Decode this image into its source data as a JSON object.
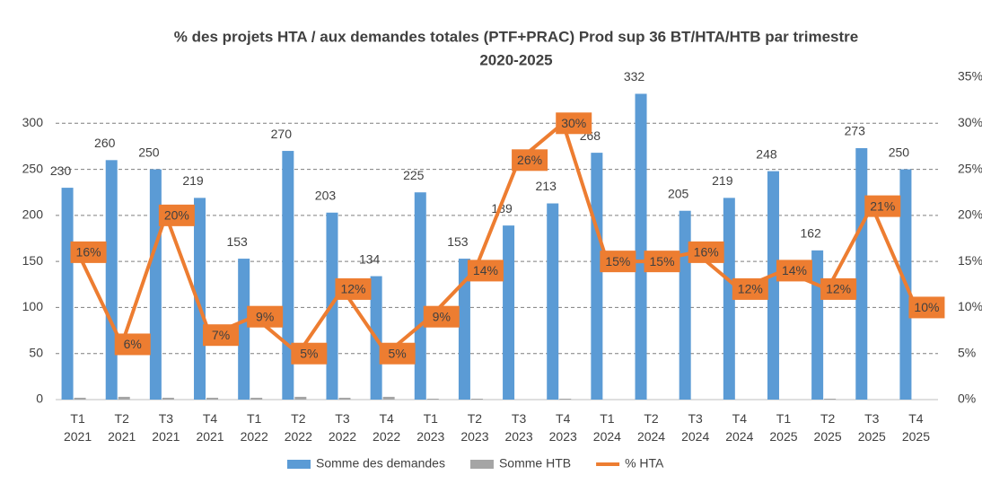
{
  "chart_data": {
    "type": "bar_line",
    "title": [
      "% des projets HTA / aux demandes totales (PTF+PRAC) Prod sup 36 BT/HTA/HTB par trimestre",
      "2020-2025"
    ],
    "categories": [
      "T1 2021",
      "T2 2021",
      "T3 2021",
      "T4 2021",
      "T1 2022",
      "T2 2022",
      "T3 2022",
      "T4 2022",
      "T1 2023",
      "T2 2023",
      "T3 2023",
      "T4 2023",
      "T1 2024",
      "T2 2024",
      "T3 2024",
      "T4 2024",
      "T1 2025",
      "T2 2025",
      "T3 2025",
      "T4 2025"
    ],
    "series": [
      {
        "name": "Somme des demandes",
        "type": "bar",
        "color": "#5b9bd5",
        "values": [
          230,
          260,
          250,
          219,
          153,
          270,
          203,
          134,
          225,
          153,
          189,
          213,
          268,
          332,
          205,
          219,
          248,
          162,
          273,
          250
        ]
      },
      {
        "name": "Somme HTB",
        "type": "bar",
        "color": "#a5a5a5",
        "values": [
          2,
          3,
          2,
          2,
          2,
          3,
          2,
          3,
          1,
          1,
          0,
          1,
          0,
          0,
          0,
          0,
          0,
          1,
          0,
          0
        ]
      },
      {
        "name": "% HTA",
        "type": "line",
        "axis": "y2",
        "color": "#ed7d31",
        "values": [
          16,
          6,
          20,
          7,
          9,
          5,
          12,
          5,
          9,
          14,
          26,
          30,
          15,
          15,
          16,
          12,
          14,
          12,
          21,
          10
        ],
        "value_labels": [
          "16%",
          "6%",
          "20%",
          "7%",
          "9%",
          "5%",
          "12%",
          "5%",
          "9%",
          "14%",
          "26%",
          "30%",
          "15%",
          "15%",
          "16%",
          "12%",
          "14%",
          "12%",
          "21%",
          "10%"
        ]
      }
    ],
    "ylim": [
      0,
      350
    ],
    "yticks": [
      0,
      50,
      100,
      150,
      200,
      250,
      300
    ],
    "y2lim": [
      0,
      35
    ],
    "y2ticks": [
      {
        "value": 0,
        "label": "0%"
      },
      {
        "value": 5,
        "label": "5%"
      },
      {
        "value": 10,
        "label": "10%"
      },
      {
        "value": 15,
        "label": "15%"
      },
      {
        "value": 20,
        "label": "20%"
      },
      {
        "value": 25,
        "label": "25%"
      },
      {
        "value": 30,
        "label": "30%"
      },
      {
        "value": 35,
        "label": "35%"
      }
    ],
    "grid": true,
    "legend": "bottom"
  }
}
